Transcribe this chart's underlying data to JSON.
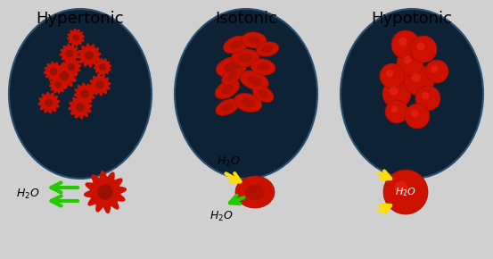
{
  "title_hypertonic": "Hypertonic",
  "title_isotonic": "Isotonic",
  "title_hypotonic": "Hypotonic",
  "bg_color": "#d0d0d0",
  "circle_fill": "#0d2235",
  "circle_edge": "#1a3a55",
  "rbc_color": "#cc1100",
  "rbc_highlight": "#ff3322",
  "rbc_dark": "#991100",
  "arrow_green": "#22cc00",
  "arrow_yellow": "#ffdd00",
  "h2o_color": "#111111",
  "title_fontsize": 13,
  "h2o_fontsize": 9
}
